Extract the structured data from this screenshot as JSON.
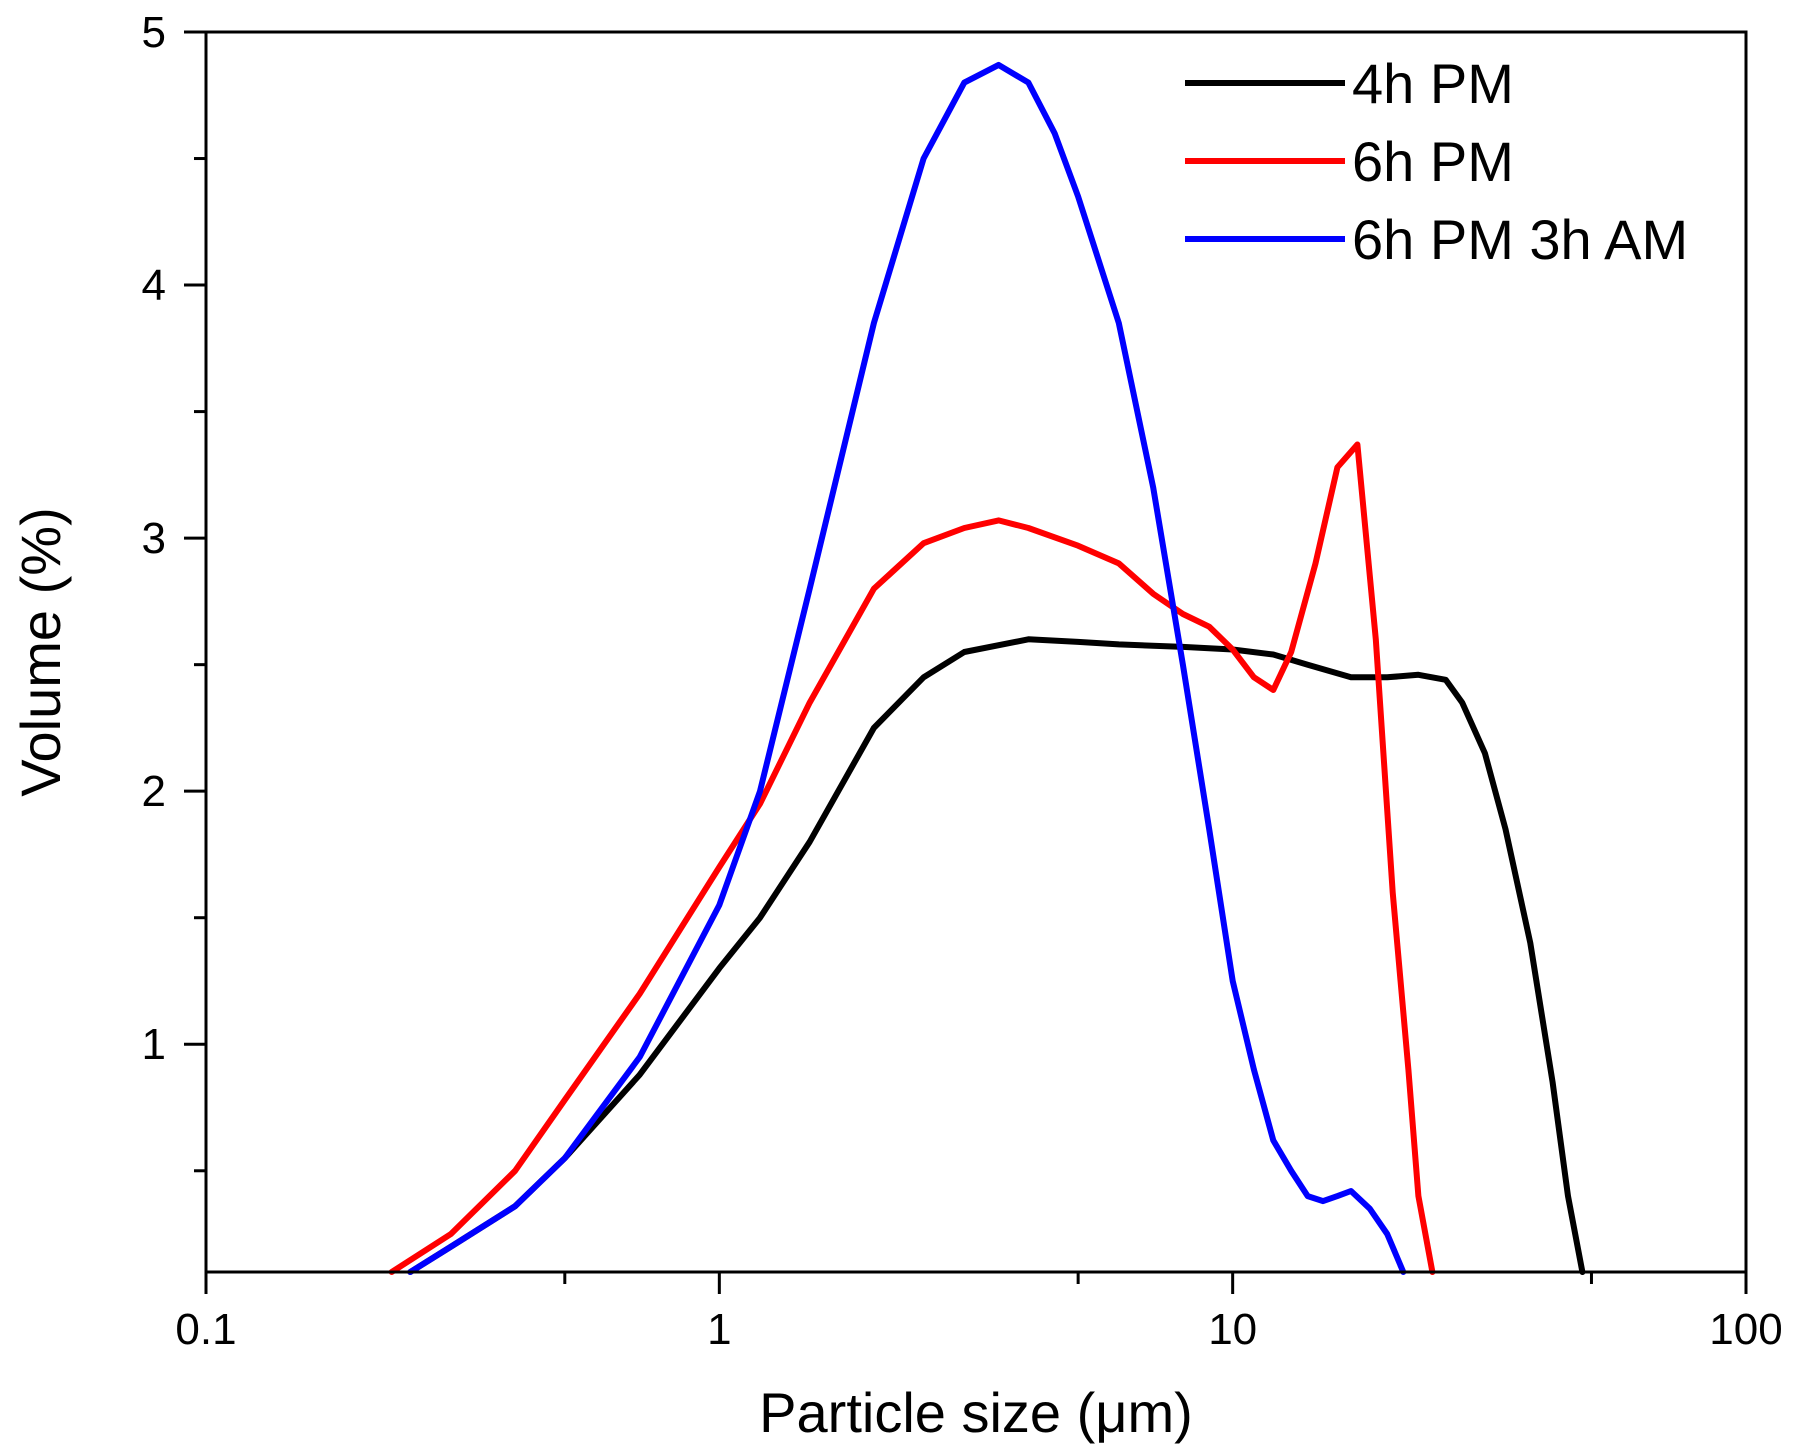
{
  "chart_data": {
    "type": "line",
    "title": "",
    "xlabel": "Particle size (μm)",
    "ylabel": "Volume (%)",
    "xscale": "log",
    "xlim": [
      0.1,
      100
    ],
    "ylim": [
      0.1,
      5
    ],
    "x_ticks": [
      {
        "value": 0.1,
        "label": "0.1"
      },
      {
        "value": 1,
        "label": "1"
      },
      {
        "value": 10,
        "label": "10"
      },
      {
        "value": 100,
        "label": "100"
      }
    ],
    "y_ticks": [
      {
        "value": 1,
        "label": "1"
      },
      {
        "value": 2,
        "label": "2"
      },
      {
        "value": 3,
        "label": "3"
      },
      {
        "value": 4,
        "label": "4"
      },
      {
        "value": 5,
        "label": "5"
      }
    ],
    "legend_position": "top-right",
    "grid": false,
    "series": [
      {
        "name": "4h PM",
        "color": "#000000",
        "points": [
          [
            0.25,
            0.1
          ],
          [
            0.3,
            0.2
          ],
          [
            0.4,
            0.36
          ],
          [
            0.5,
            0.55
          ],
          [
            0.7,
            0.88
          ],
          [
            1.0,
            1.3
          ],
          [
            1.2,
            1.5
          ],
          [
            1.5,
            1.8
          ],
          [
            2.0,
            2.25
          ],
          [
            2.5,
            2.45
          ],
          [
            3.0,
            2.55
          ],
          [
            4.0,
            2.6
          ],
          [
            5.0,
            2.59
          ],
          [
            6.0,
            2.58
          ],
          [
            8.0,
            2.57
          ],
          [
            10.0,
            2.56
          ],
          [
            12.0,
            2.54
          ],
          [
            14.0,
            2.5
          ],
          [
            17.0,
            2.45
          ],
          [
            20.0,
            2.45
          ],
          [
            23.0,
            2.46
          ],
          [
            26.0,
            2.44
          ],
          [
            28.0,
            2.35
          ],
          [
            31.0,
            2.15
          ],
          [
            34.0,
            1.85
          ],
          [
            38.0,
            1.4
          ],
          [
            42.0,
            0.85
          ],
          [
            45.0,
            0.4
          ],
          [
            48.0,
            0.1
          ]
        ]
      },
      {
        "name": "6h PM",
        "color": "#ff0000",
        "points": [
          [
            0.23,
            0.1
          ],
          [
            0.3,
            0.25
          ],
          [
            0.4,
            0.5
          ],
          [
            0.5,
            0.78
          ],
          [
            0.7,
            1.2
          ],
          [
            1.0,
            1.7
          ],
          [
            1.2,
            1.95
          ],
          [
            1.5,
            2.35
          ],
          [
            2.0,
            2.8
          ],
          [
            2.5,
            2.98
          ],
          [
            3.0,
            3.04
          ],
          [
            3.5,
            3.07
          ],
          [
            4.0,
            3.04
          ],
          [
            5.0,
            2.97
          ],
          [
            6.0,
            2.9
          ],
          [
            7.0,
            2.78
          ],
          [
            8.0,
            2.7
          ],
          [
            9.0,
            2.65
          ],
          [
            10.0,
            2.56
          ],
          [
            11.0,
            2.45
          ],
          [
            12.0,
            2.4
          ],
          [
            13.0,
            2.55
          ],
          [
            14.5,
            2.9
          ],
          [
            16.0,
            3.28
          ],
          [
            17.5,
            3.37
          ],
          [
            19.0,
            2.6
          ],
          [
            20.5,
            1.6
          ],
          [
            22.0,
            0.9
          ],
          [
            23.0,
            0.4
          ],
          [
            24.5,
            0.1
          ]
        ]
      },
      {
        "name": "6h PM 3h AM",
        "color": "#0000ff",
        "points": [
          [
            0.25,
            0.1
          ],
          [
            0.3,
            0.2
          ],
          [
            0.4,
            0.36
          ],
          [
            0.5,
            0.55
          ],
          [
            0.7,
            0.95
          ],
          [
            1.0,
            1.55
          ],
          [
            1.2,
            2.0
          ],
          [
            1.5,
            2.8
          ],
          [
            2.0,
            3.85
          ],
          [
            2.5,
            4.5
          ],
          [
            3.0,
            4.8
          ],
          [
            3.5,
            4.87
          ],
          [
            4.0,
            4.8
          ],
          [
            4.5,
            4.6
          ],
          [
            5.0,
            4.35
          ],
          [
            6.0,
            3.85
          ],
          [
            7.0,
            3.2
          ],
          [
            8.0,
            2.5
          ],
          [
            9.0,
            1.85
          ],
          [
            10.0,
            1.25
          ],
          [
            11.0,
            0.9
          ],
          [
            12.0,
            0.62
          ],
          [
            13.0,
            0.5
          ],
          [
            14.0,
            0.4
          ],
          [
            15.0,
            0.38
          ],
          [
            16.0,
            0.4
          ],
          [
            17.0,
            0.42
          ],
          [
            18.5,
            0.35
          ],
          [
            20.0,
            0.25
          ],
          [
            21.5,
            0.1
          ]
        ]
      }
    ]
  }
}
